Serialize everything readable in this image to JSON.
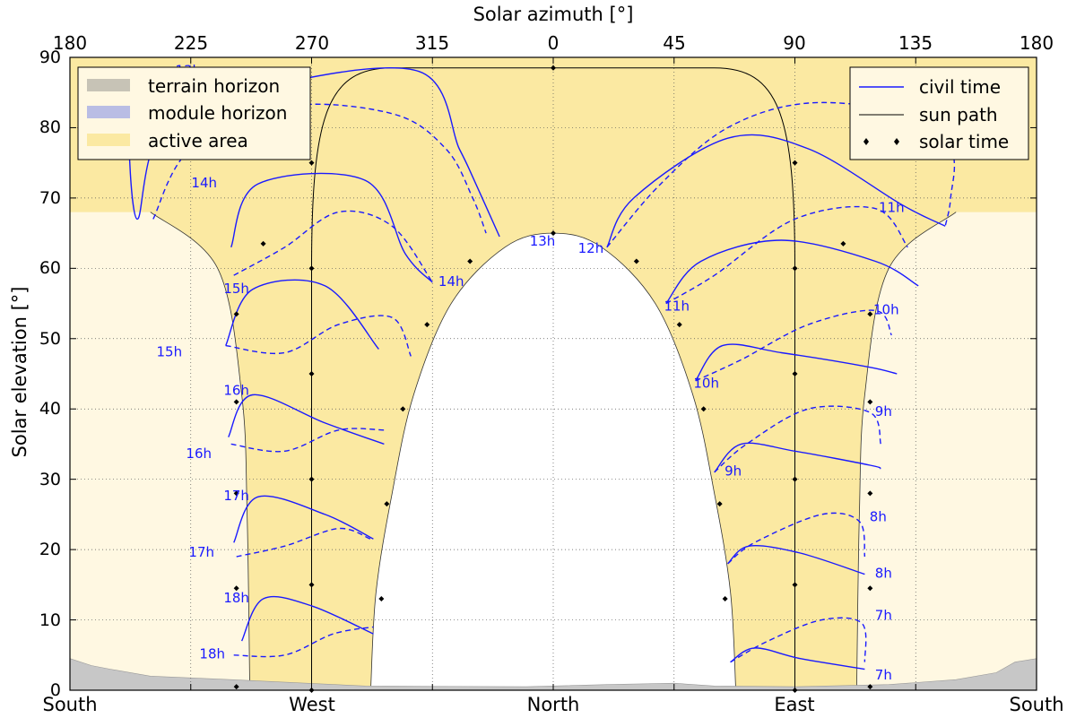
{
  "chart_data": {
    "type": "line",
    "top_axis": {
      "label": "Solar azimuth [°]",
      "ticks": [
        "180",
        "225",
        "270",
        "315",
        "0",
        "45",
        "90",
        "135",
        "180"
      ]
    },
    "y_axis": {
      "label": "Solar elevation [°]",
      "ylim": [
        0,
        90
      ],
      "ticks": [
        "0",
        "10",
        "20",
        "30",
        "40",
        "50",
        "60",
        "70",
        "80",
        "90"
      ]
    },
    "bottom_axis": {
      "xlim": [
        -180,
        180
      ],
      "ticks": [
        {
          "x": -180,
          "label": "South"
        },
        {
          "x": -90,
          "label": "West"
        },
        {
          "x": 0,
          "label": "North"
        },
        {
          "x": 90,
          "label": "East"
        },
        {
          "x": 180,
          "label": "South"
        }
      ]
    },
    "grid": true,
    "legends": {
      "left": {
        "placement": "top-left",
        "entries": [
          {
            "label": "terrain horizon",
            "color": "#c7c3b6"
          },
          {
            "label": "module horizon",
            "color": "#b9bde4"
          },
          {
            "label": "active area",
            "color": "#fbe9a2"
          }
        ]
      },
      "right": {
        "placement": "top-right",
        "entries": [
          {
            "label": "civil time",
            "color": "#1a1aff"
          },
          {
            "label": "sun path",
            "color": "#000000"
          },
          {
            "label": "solar time",
            "color": "#000000"
          }
        ]
      }
    },
    "colors": {
      "active_area": "#fbe9a2",
      "inactive_area": "#fff8e2",
      "terrain": "#c7c7c7",
      "civil_time": "#1a1aff",
      "sun_path": "#000000"
    },
    "sun_path": {
      "elevations": [
        0.5,
        14.5,
        28,
        41,
        53.5,
        63.5,
        68,
        69,
        68,
        63.5,
        53.5,
        41,
        28,
        14.5,
        0.5
      ],
      "cross_points": [
        [
          -90,
          0
        ],
        [
          -90,
          15
        ],
        [
          -90,
          30
        ],
        [
          -90,
          45
        ],
        [
          -90,
          60
        ],
        [
          -90,
          75
        ],
        [
          0,
          88.5
        ],
        [
          90,
          75
        ],
        [
          90,
          60
        ],
        [
          90,
          45
        ],
        [
          90,
          30
        ],
        [
          90,
          15
        ],
        [
          90,
          0
        ]
      ],
      "horizon_points": [
        [
          -118,
          0.5
        ],
        [
          -118,
          14.5
        ],
        [
          -118,
          28
        ],
        [
          -118,
          41
        ],
        [
          -118,
          53.5
        ],
        [
          -108,
          63.5
        ],
        [
          -64,
          13
        ],
        [
          -62,
          26.5
        ],
        [
          -56,
          40
        ],
        [
          -47,
          52
        ],
        [
          -31,
          61
        ],
        [
          0,
          65
        ],
        [
          31,
          61
        ],
        [
          47,
          52
        ],
        [
          56,
          40
        ],
        [
          62,
          26.5
        ],
        [
          64,
          13
        ],
        [
          108,
          63.5
        ],
        [
          118,
          53.5
        ],
        [
          118,
          41
        ],
        [
          118,
          28
        ],
        [
          118,
          14.5
        ],
        [
          118,
          0.5
        ]
      ]
    },
    "active_boundary": {
      "left_outer": [
        [
          -150,
          68
        ],
        [
          -125,
          60
        ],
        [
          -116,
          42
        ],
        [
          -114,
          25
        ],
        [
          -113,
          0
        ]
      ],
      "inner": [
        [
          -68,
          0
        ],
        [
          -66,
          14
        ],
        [
          -60,
          28
        ],
        [
          -52,
          42
        ],
        [
          -38,
          55
        ],
        [
          -18,
          63
        ],
        [
          0,
          65
        ],
        [
          18,
          63
        ],
        [
          38,
          55
        ],
        [
          52,
          42
        ],
        [
          60,
          28
        ],
        [
          66,
          14
        ],
        [
          68,
          0
        ]
      ],
      "right_outer": [
        [
          113,
          0
        ],
        [
          114,
          25
        ],
        [
          116,
          42
        ],
        [
          125,
          60
        ],
        [
          150,
          68
        ]
      ]
    },
    "civil_time_labels": [
      {
        "label": "13h",
        "x": -136,
        "y": 87.5
      },
      {
        "label": "13h",
        "x": -4,
        "y": 63.2
      },
      {
        "label": "12h",
        "x": 14,
        "y": 62.2
      },
      {
        "label": "12h",
        "x": 126,
        "y": 83.5
      },
      {
        "label": "14h",
        "x": -130,
        "y": 71.5
      },
      {
        "label": "14h",
        "x": -38,
        "y": 57.5
      },
      {
        "label": "11h",
        "x": 126,
        "y": 68
      },
      {
        "label": "11h",
        "x": 46,
        "y": 54
      },
      {
        "label": "15h",
        "x": -118,
        "y": 56.5
      },
      {
        "label": "15h",
        "x": -143,
        "y": 47.5
      },
      {
        "label": "10h",
        "x": 124,
        "y": 53.5
      },
      {
        "label": "10h",
        "x": 57,
        "y": 43
      },
      {
        "label": "16h",
        "x": -118,
        "y": 42
      },
      {
        "label": "16h",
        "x": -132,
        "y": 33
      },
      {
        "label": "9h",
        "x": 123,
        "y": 39
      },
      {
        "label": "9h",
        "x": 67,
        "y": 30.5
      },
      {
        "label": "17h",
        "x": -118,
        "y": 27
      },
      {
        "label": "17h",
        "x": -131,
        "y": 19
      },
      {
        "label": "8h",
        "x": 121,
        "y": 24
      },
      {
        "label": "8h",
        "x": 123,
        "y": 16
      },
      {
        "label": "18h",
        "x": -118,
        "y": 12.5
      },
      {
        "label": "18h",
        "x": -127,
        "y": 4.5
      },
      {
        "label": "7h",
        "x": 123,
        "y": 10
      },
      {
        "label": "7h",
        "x": 123,
        "y": 1.5
      }
    ],
    "analemmas": {
      "solid": [
        [
          [
            -152,
            86
          ],
          [
            -158,
            82
          ],
          [
            -155,
            67
          ],
          [
            -145,
            80
          ],
          [
            -105,
            86
          ],
          [
            -50,
            88
          ],
          [
            -35,
            77
          ],
          [
            -30,
            73
          ],
          [
            -20,
            64.5
          ]
        ],
        [
          [
            -120,
            63
          ],
          [
            -110,
            72
          ],
          [
            -70,
            72.5
          ],
          [
            -55,
            62
          ],
          [
            -45,
            58
          ]
        ],
        [
          [
            -122,
            49
          ],
          [
            -112,
            57
          ],
          [
            -85,
            57.5
          ],
          [
            -65,
            48.5
          ]
        ],
        [
          [
            -121,
            36
          ],
          [
            -112,
            42
          ],
          [
            -85,
            38
          ],
          [
            -63,
            35
          ]
        ],
        [
          [
            -119,
            21
          ],
          [
            -110,
            27.5
          ],
          [
            -85,
            25
          ],
          [
            -67,
            21.5
          ]
        ],
        [
          [
            -116,
            7
          ],
          [
            -108,
            13
          ],
          [
            -90,
            12
          ],
          [
            -67,
            8
          ]
        ],
        [
          [
            20,
            63
          ],
          [
            30,
            70
          ],
          [
            65,
            78.5
          ],
          [
            95,
            77
          ],
          [
            130,
            69
          ],
          [
            146,
            66
          ]
        ],
        [
          [
            42,
            55
          ],
          [
            55,
            61
          ],
          [
            85,
            64
          ],
          [
            120,
            61
          ],
          [
            136,
            57.5
          ]
        ],
        [
          [
            53,
            44
          ],
          [
            63,
            49
          ],
          [
            85,
            48
          ],
          [
            117,
            46
          ],
          [
            128,
            45
          ]
        ],
        [
          [
            60,
            31
          ],
          [
            70,
            35
          ],
          [
            90,
            34
          ],
          [
            118,
            32
          ],
          [
            122,
            31.5
          ]
        ],
        [
          [
            65,
            18
          ],
          [
            73,
            20.5
          ],
          [
            92,
            19.5
          ],
          [
            116,
            16.5
          ]
        ],
        [
          [
            66,
            4
          ],
          [
            75,
            6
          ],
          [
            92,
            4.5
          ],
          [
            116,
            3
          ]
        ]
      ],
      "dashed": [
        [
          [
            -149,
            67
          ],
          [
            -135,
            77
          ],
          [
            -100,
            83
          ],
          [
            -60,
            82
          ],
          [
            -40,
            77
          ],
          [
            -30,
            70
          ],
          [
            -25,
            65
          ]
        ],
        [
          [
            -119,
            59
          ],
          [
            -100,
            63
          ],
          [
            -80,
            68
          ],
          [
            -60,
            66
          ],
          [
            -45,
            58
          ]
        ],
        [
          [
            -122,
            49
          ],
          [
            -100,
            48
          ],
          [
            -80,
            52
          ],
          [
            -60,
            53
          ],
          [
            -53,
            47.5
          ]
        ],
        [
          [
            -120,
            35
          ],
          [
            -100,
            34
          ],
          [
            -80,
            37
          ],
          [
            -63,
            37
          ]
        ],
        [
          [
            -118,
            19
          ],
          [
            -100,
            20.5
          ],
          [
            -80,
            23
          ],
          [
            -68,
            21.5
          ]
        ],
        [
          [
            -119,
            5
          ],
          [
            -100,
            5
          ],
          [
            -82,
            8
          ],
          [
            -67,
            9
          ]
        ],
        [
          [
            20,
            63
          ],
          [
            40,
            72
          ],
          [
            65,
            80
          ],
          [
            95,
            83.5
          ],
          [
            130,
            82
          ],
          [
            148,
            77
          ],
          [
            148,
            70
          ],
          [
            146,
            66
          ]
        ],
        [
          [
            42,
            55
          ],
          [
            60,
            59
          ],
          [
            90,
            67
          ],
          [
            120,
            68.5
          ],
          [
            132,
            63
          ]
        ],
        [
          [
            53,
            44
          ],
          [
            70,
            47
          ],
          [
            95,
            52
          ],
          [
            120,
            54
          ],
          [
            126,
            50.5
          ]
        ],
        [
          [
            60,
            31
          ],
          [
            72,
            35
          ],
          [
            95,
            40
          ],
          [
            118,
            39.5
          ],
          [
            122,
            35
          ]
        ],
        [
          [
            65,
            18
          ],
          [
            75,
            21
          ],
          [
            100,
            25
          ],
          [
            114,
            24
          ],
          [
            116,
            19
          ]
        ],
        [
          [
            66,
            4
          ],
          [
            80,
            7
          ],
          [
            100,
            10
          ],
          [
            115,
            9.5
          ],
          [
            116,
            4
          ]
        ]
      ]
    },
    "terrain_horizon": [
      [
        -180,
        4.5
      ],
      [
        -172,
        3.5
      ],
      [
        -165,
        3
      ],
      [
        -150,
        2
      ],
      [
        -120,
        1.5
      ],
      [
        -70,
        0.6
      ],
      [
        -10,
        0.5
      ],
      [
        20,
        0.8
      ],
      [
        45,
        1
      ],
      [
        60,
        0.6
      ],
      [
        90,
        0.5
      ],
      [
        125,
        0.8
      ],
      [
        150,
        1.5
      ],
      [
        165,
        2.5
      ],
      [
        172,
        4
      ],
      [
        180,
        4.5
      ]
    ]
  }
}
